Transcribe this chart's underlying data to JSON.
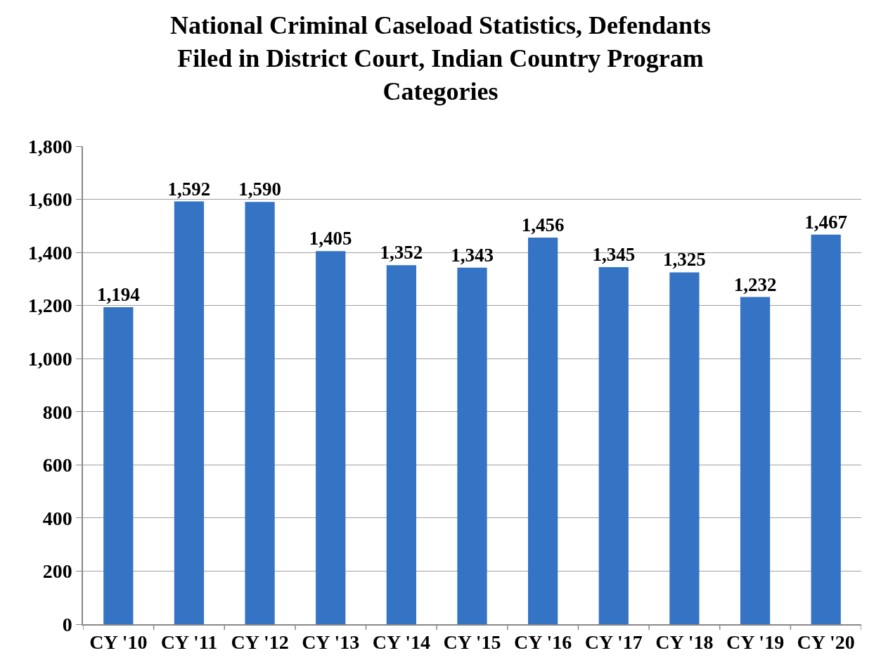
{
  "chart_data": {
    "type": "bar",
    "title": "National Criminal Caseload Statistics, Defendants\nFiled in District Court, Indian Country Program\nCategories",
    "categories": [
      "CY '10",
      "CY '11",
      "CY '12",
      "CY '13",
      "CY '14",
      "CY '15",
      "CY '16",
      "CY '17",
      "CY '18",
      "CY '19",
      "CY '20"
    ],
    "values": [
      1194,
      1592,
      1590,
      1405,
      1352,
      1343,
      1456,
      1345,
      1325,
      1232,
      1467
    ],
    "value_labels": [
      "1,194",
      "1,592",
      "1,590",
      "1,405",
      "1,352",
      "1,343",
      "1,456",
      "1,345",
      "1,325",
      "1,232",
      "1,467"
    ],
    "color": "#3574c4",
    "ylim": [
      0,
      1800
    ],
    "yticks": [
      {
        "value": 0,
        "label": "0"
      },
      {
        "value": 200,
        "label": "200"
      },
      {
        "value": 400,
        "label": "400"
      },
      {
        "value": 600,
        "label": "600"
      },
      {
        "value": 800,
        "label": "800"
      },
      {
        "value": 1000,
        "label": "1,000"
      },
      {
        "value": 1200,
        "label": "1,200"
      },
      {
        "value": 1400,
        "label": "1,400"
      },
      {
        "value": 1600,
        "label": "1,600"
      },
      {
        "value": 1800,
        "label": "1,800"
      }
    ],
    "grid": "y"
  }
}
